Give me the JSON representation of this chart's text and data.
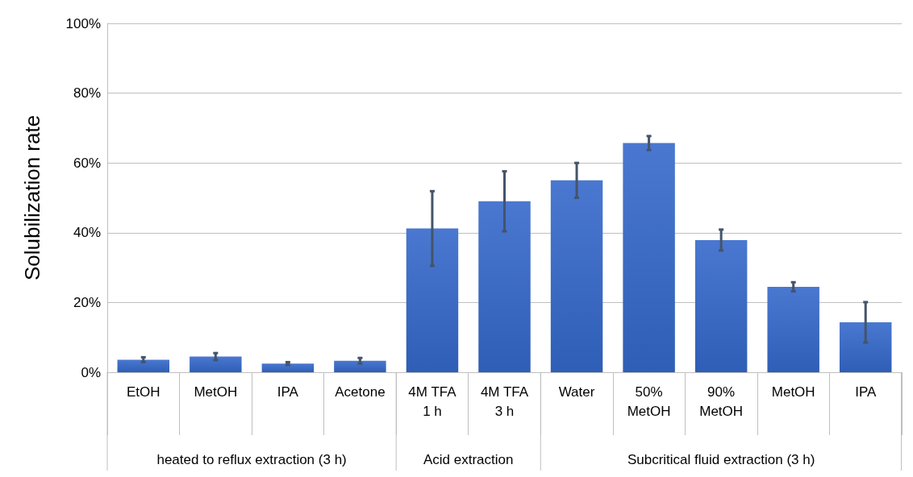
{
  "chart_data": {
    "type": "bar",
    "ylabel": "Solubilization rate",
    "categories": [
      "EtOH",
      "MetOH",
      "IPA",
      "Acetone",
      "4M TFA\n1 h",
      "4M TFA\n3 h",
      "Water",
      "50%\nMetOH",
      "90%\nMetOH",
      "MetOH",
      "IPA"
    ],
    "values": [
      3.6,
      4.5,
      2.5,
      3.3,
      41.2,
      49,
      55,
      65.7,
      37.9,
      24.5,
      14.3
    ],
    "errors": [
      0.7,
      1,
      0.4,
      0.8,
      10.7,
      8.6,
      5,
      2,
      3,
      1.3,
      5.8
    ],
    "color": "#4a78d0",
    "ylim": [
      0,
      100
    ],
    "yticks": [
      {
        "value": 0,
        "label": "0%"
      },
      {
        "value": 20,
        "label": "20%"
      },
      {
        "value": 40,
        "label": "40%"
      },
      {
        "value": 60,
        "label": "60%"
      },
      {
        "value": 80,
        "label": "80%"
      },
      {
        "value": 100,
        "label": "100%"
      }
    ],
    "grid": "y",
    "annotations": [
      "heated to reflux extraction (3 h)",
      "Acid extraction",
      "Subcritical fluid extraction (3 h)"
    ]
  }
}
